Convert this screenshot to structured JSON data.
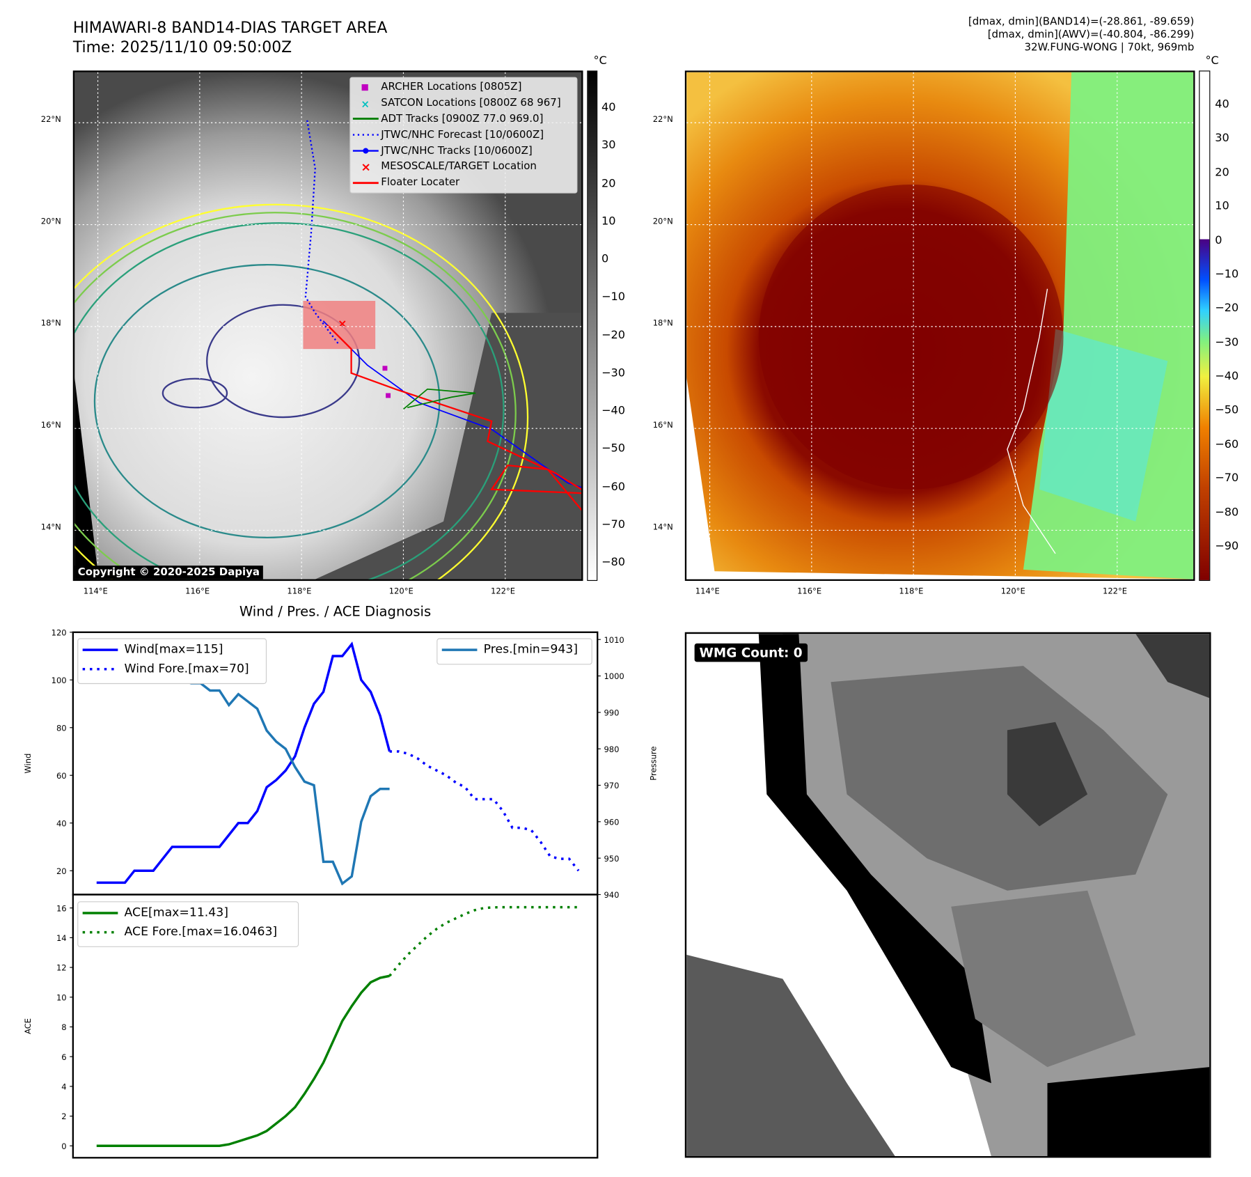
{
  "header": {
    "title": "HIMAWARI-8 BAND14-DIAS TARGET AREA",
    "time": "Time: 2025/11/10 09:50:00Z",
    "info_line1": "[dmax, dmin](BAND14)=(-28.861, -89.659)",
    "info_line2": "[dmax, dmin](AWV)=(-40.804, -86.299)",
    "info_line3": "32W.FUNG-WONG | 70kt, 969mb"
  },
  "map": {
    "lat_labels": [
      "22°N",
      "20°N",
      "18°N",
      "16°N",
      "14°N"
    ],
    "lon_labels": [
      "114°E",
      "116°E",
      "118°E",
      "120°E",
      "122°E"
    ],
    "copyright": "Copyright © 2020-2025 Dapiya",
    "legend": [
      {
        "label": "ARCHER Locations [0805Z]",
        "color": "#c000c0",
        "symbol": "square"
      },
      {
        "label": "SATCON Locations [0800Z 68 967]",
        "color": "#00c0c0",
        "symbol": "x"
      },
      {
        "label": "ADT Tracks [0900Z 77.0 969.0]",
        "color": "#008000",
        "symbol": "line"
      },
      {
        "label": "JTWC/NHC Forecast [10/0600Z]",
        "color": "#0000ff",
        "symbol": "dotted"
      },
      {
        "label": "JTWC/NHC Tracks [10/0600Z]",
        "color": "#0000ff",
        "symbol": "line-dot"
      },
      {
        "label": "MESOSCALE/TARGET Location",
        "color": "#ff0000",
        "symbol": "cross"
      },
      {
        "label": "Floater Locater",
        "color": "#ff0000",
        "symbol": "line"
      }
    ]
  },
  "colorbar_left": {
    "unit": "°C",
    "ticks": [
      "40",
      "30",
      "20",
      "10",
      "0",
      "−10",
      "−20",
      "−30",
      "−40",
      "−50",
      "−60",
      "−70",
      "−80"
    ]
  },
  "colorbar_right": {
    "unit": "°C",
    "ticks": [
      "40",
      "30",
      "20",
      "10",
      "0",
      "−10",
      "−20",
      "−30",
      "−40",
      "−50",
      "−60",
      "−70",
      "−80",
      "−90"
    ]
  },
  "wmg": {
    "label": "WMG Count: 0"
  },
  "chart_data": [
    {
      "type": "line",
      "title": "Wind / Pres. / ACE Diagnosis",
      "ylabel": "Wind",
      "ylabel_right": "Pressure",
      "ylim": [
        10,
        120
      ],
      "ylim_right": [
        940,
        1012
      ],
      "yticks": [
        20,
        40,
        60,
        80,
        100,
        120
      ],
      "yticks_right": [
        940,
        950,
        960,
        970,
        980,
        990,
        1000,
        1010
      ],
      "series": [
        {
          "name": "Wind[max=115]",
          "axis": "left",
          "color": "#0000ff",
          "style": "solid",
          "x": [
            0,
            1,
            2,
            3,
            4,
            5,
            6,
            7,
            8,
            9,
            10,
            11,
            12,
            13,
            14,
            15,
            16,
            17,
            18,
            19,
            20,
            21,
            22,
            23,
            24,
            25,
            26,
            27,
            28,
            29,
            30,
            31
          ],
          "values": [
            15,
            15,
            15,
            15,
            20,
            20,
            20,
            25,
            30,
            30,
            30,
            30,
            30,
            30,
            35,
            40,
            40,
            45,
            55,
            58,
            62,
            68,
            80,
            90,
            95,
            110,
            110,
            115,
            100,
            95,
            85,
            70
          ]
        },
        {
          "name": "Wind Fore.[max=70]",
          "axis": "left",
          "color": "#0000ff",
          "style": "dotted",
          "x": [
            31,
            32,
            33,
            34,
            35,
            36,
            37,
            38,
            39,
            40,
            41,
            42,
            43,
            44,
            45,
            46,
            47,
            48,
            49,
            50,
            51
          ],
          "values": [
            70,
            70,
            69,
            67,
            64,
            62,
            60,
            57,
            55,
            50,
            50,
            50,
            45,
            38,
            38,
            37,
            32,
            26,
            25,
            25,
            20
          ]
        },
        {
          "name": "Pres.[min=943]",
          "axis": "right",
          "color": "#1f77b4",
          "style": "solid",
          "x": [
            0,
            1,
            2,
            3,
            4,
            5,
            6,
            7,
            8,
            9,
            10,
            11,
            12,
            13,
            14,
            15,
            16,
            17,
            18,
            19,
            20,
            21,
            22,
            23,
            24,
            25,
            26,
            27,
            28,
            29,
            30,
            31
          ],
          "values": [
            1010,
            1005,
            1005,
            1005,
            1003,
            999,
            1000,
            1000,
            1000,
            999,
            998,
            998,
            996,
            996,
            992,
            995,
            993,
            991,
            985,
            982,
            980,
            975,
            971,
            970,
            949,
            949,
            943,
            945,
            960,
            967,
            969,
            969
          ]
        }
      ]
    },
    {
      "type": "line",
      "ylabel": "ACE",
      "ylim": [
        -0.8,
        16.9
      ],
      "yticks": [
        0,
        2,
        4,
        6,
        8,
        10,
        12,
        14,
        16
      ],
      "series": [
        {
          "name": "ACE[max=11.43]",
          "color": "#008000",
          "style": "solid",
          "x": [
            0,
            13,
            14,
            15,
            16,
            17,
            18,
            19,
            20,
            21,
            22,
            23,
            24,
            25,
            26,
            27,
            28,
            29,
            30,
            31
          ],
          "values": [
            0,
            0,
            0.1,
            0.3,
            0.5,
            0.7,
            1.0,
            1.5,
            2.0,
            2.6,
            3.5,
            4.5,
            5.6,
            7.0,
            8.4,
            9.4,
            10.3,
            11.0,
            11.3,
            11.43
          ]
        },
        {
          "name": "ACE Fore.[max=16.0463]",
          "color": "#008000",
          "style": "dotted",
          "x": [
            31,
            32,
            33,
            34,
            35,
            36,
            37,
            38,
            39,
            40,
            41,
            42,
            43,
            44,
            45,
            46,
            47,
            48,
            49,
            50,
            51
          ],
          "values": [
            11.43,
            12.2,
            12.9,
            13.5,
            14.1,
            14.6,
            15.0,
            15.3,
            15.6,
            15.85,
            16.0,
            16.04,
            16.05,
            16.05,
            16.05,
            16.05,
            16.05,
            16.05,
            16.05,
            16.05,
            16.05
          ]
        }
      ]
    }
  ]
}
